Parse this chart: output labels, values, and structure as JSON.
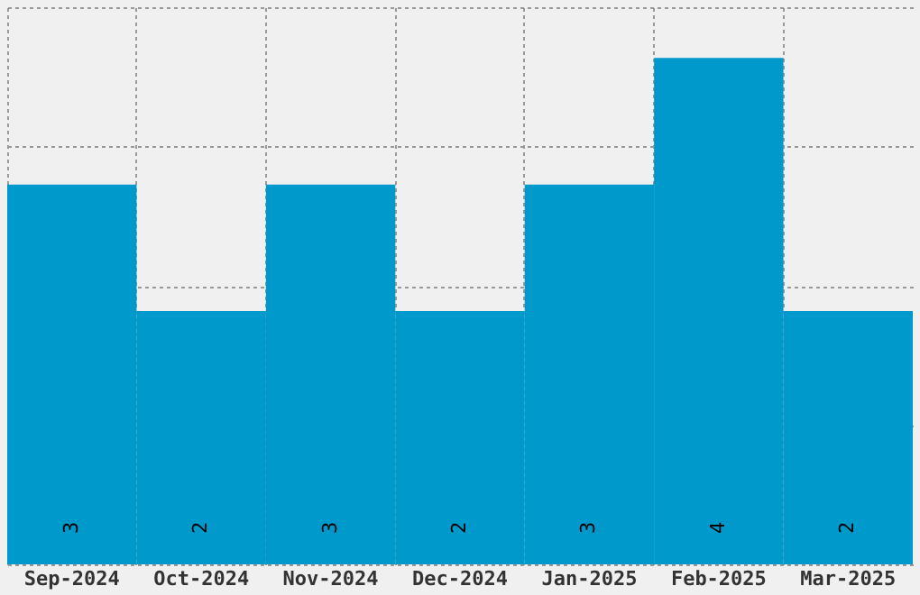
{
  "chart_data": {
    "type": "bar",
    "categories": [
      "Sep-2024",
      "Oct-2024",
      "Nov-2024",
      "Dec-2024",
      "Jan-2025",
      "Feb-2025",
      "Mar-2025"
    ],
    "values": [
      3,
      2,
      3,
      2,
      3,
      4,
      2
    ],
    "color": "#0099cc",
    "data_labels": true,
    "grid": true,
    "tick_labels": "x",
    "ylim": [
      0,
      4.4
    ],
    "yticks": [
      {
        "value": 0,
        "label": null
      },
      {
        "value": 1.1,
        "label": null
      },
      {
        "value": 2.2,
        "label": null
      },
      {
        "value": 3.3,
        "label": null
      },
      {
        "value": 4.4,
        "label": null
      }
    ]
  }
}
